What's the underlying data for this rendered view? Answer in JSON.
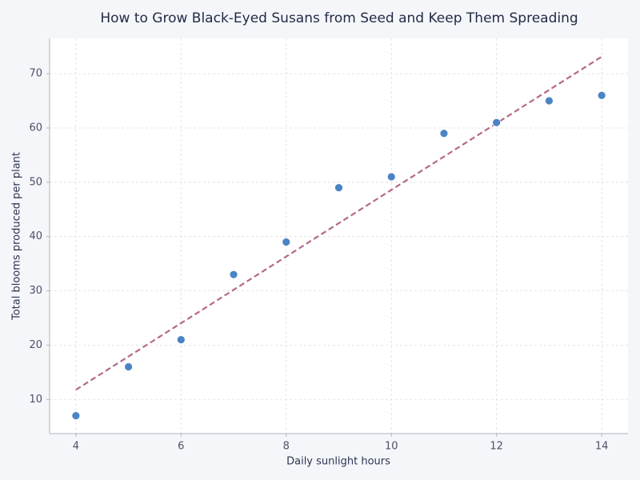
{
  "chart_data": {
    "type": "scatter",
    "title": "How to Grow Black-Eyed Susans from Seed and Keep Them Spreading",
    "x_label": "Daily sunlight hours",
    "y_label": "Total blooms produced per plant",
    "x": [
      4,
      5,
      6,
      7,
      8,
      9,
      10,
      11,
      12,
      13,
      14
    ],
    "values": [
      7,
      16,
      21,
      33,
      39,
      49,
      51,
      59,
      61,
      65,
      66
    ],
    "color": "#4a84c4",
    "trend": {
      "x": [
        4,
        14
      ],
      "values": [
        11.77,
        73.14
      ],
      "color": "#b5688a"
    },
    "xlim": [
      3.5,
      14.5
    ],
    "xticks": [
      4,
      6,
      8,
      10,
      12,
      14
    ],
    "ylim": [
      3.7,
      76.5
    ],
    "yticks": [
      10,
      20,
      30,
      40,
      50,
      60,
      70
    ],
    "grid": true
  }
}
